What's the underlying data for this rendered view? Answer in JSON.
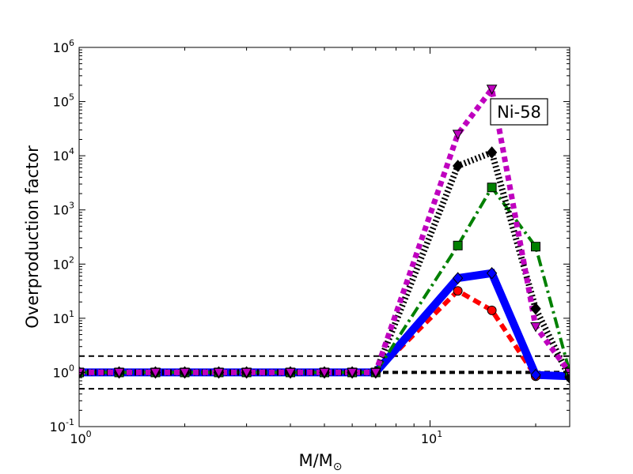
{
  "chart_data": {
    "type": "line",
    "title": "",
    "xlabel_main": "M/M",
    "xlabel_sub": "⊙",
    "ylabel": "Overproduction factor",
    "xscale": "log",
    "yscale": "log",
    "xlim": [
      1,
      25
    ],
    "ylim": [
      0.1,
      1000000
    ],
    "x_ticks": [
      {
        "value": 1,
        "base": "10",
        "exp": "0"
      },
      {
        "value": 10,
        "base": "10",
        "exp": "1"
      }
    ],
    "y_ticks": [
      {
        "value": 0.1,
        "base": "10",
        "exp": "-1"
      },
      {
        "value": 1,
        "base": "10",
        "exp": "0"
      },
      {
        "value": 10,
        "base": "10",
        "exp": "1"
      },
      {
        "value": 100,
        "base": "10",
        "exp": "2"
      },
      {
        "value": 1000,
        "base": "10",
        "exp": "3"
      },
      {
        "value": 10000,
        "base": "10",
        "exp": "4"
      },
      {
        "value": 100000,
        "base": "10",
        "exp": "5"
      },
      {
        "value": 1000000,
        "base": "10",
        "exp": "6"
      }
    ],
    "reference_lines": [
      {
        "y": 2,
        "style": "dashed",
        "width": 2
      },
      {
        "y": 1,
        "style": "dashed",
        "width": 4
      },
      {
        "y": 0.5,
        "style": "dashed",
        "width": 2
      }
    ],
    "annotation": {
      "text": "Ni-58",
      "position": "top-right"
    },
    "series": [
      {
        "color": "#ff0000",
        "dash": "10,6",
        "width": 6,
        "marker": "circle",
        "x": [
          1,
          1.3,
          1.65,
          2,
          2.5,
          3,
          4,
          5,
          6,
          7,
          12,
          15,
          20,
          25
        ],
        "y": [
          1,
          1,
          1,
          1,
          1,
          1,
          1,
          1,
          1,
          1,
          32,
          14,
          0.85,
          0.85
        ]
      },
      {
        "color": "#0000ff",
        "dash": "",
        "width": 10,
        "marker": "diamond",
        "x": [
          1,
          1.3,
          1.65,
          2,
          2.5,
          3,
          4,
          5,
          6,
          7,
          12,
          15,
          20,
          25
        ],
        "y": [
          1,
          1,
          1,
          1,
          1,
          1,
          1,
          1,
          1,
          1,
          55,
          68,
          0.9,
          0.85
        ]
      },
      {
        "color": "#008000",
        "dash": "14,5,3,5",
        "width": 4,
        "marker": "square",
        "x": [
          1,
          1.3,
          1.65,
          2,
          2.5,
          3,
          4,
          5,
          6,
          7,
          12,
          15,
          20,
          25
        ],
        "y": [
          1,
          1,
          1,
          1,
          1,
          1,
          1,
          1,
          1,
          1,
          220,
          2600,
          210,
          1.0
        ]
      },
      {
        "color": "#000000",
        "dash": "2,3",
        "width": 8,
        "marker": "diamond",
        "x": [
          1,
          1.3,
          1.65,
          2,
          2.5,
          3,
          4,
          5,
          6,
          7,
          12,
          15,
          20,
          25
        ],
        "y": [
          1,
          1,
          1,
          1,
          1,
          1,
          1,
          1,
          1,
          1,
          6500,
          11500,
          15,
          0.8
        ]
      },
      {
        "color": "#bf00bf",
        "dash": "7,5",
        "width": 7,
        "marker": "triangle-down",
        "x": [
          1,
          1.3,
          1.65,
          2,
          2.5,
          3,
          4,
          5,
          6,
          7,
          12,
          15,
          20,
          25
        ],
        "y": [
          1,
          1,
          1,
          1,
          1,
          1,
          1,
          1,
          1,
          1,
          25000,
          170000,
          7,
          1.0
        ]
      }
    ]
  }
}
